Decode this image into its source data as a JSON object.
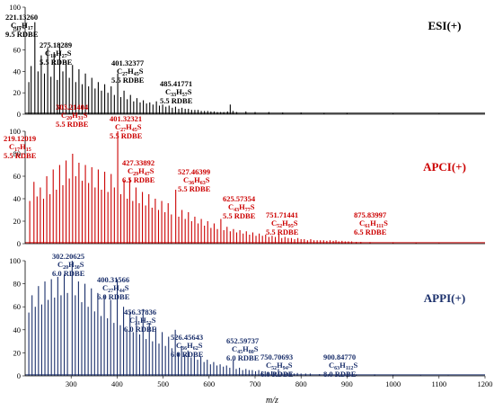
{
  "chart_data": {
    "type": "bar",
    "xlabel": "m/z",
    "xlim": [
      200,
      1200
    ],
    "x_ticks": [
      300,
      400,
      500,
      600,
      700,
      800,
      900,
      1000,
      1100,
      1200
    ],
    "ylim": [
      0,
      100
    ],
    "y_ticks": [
      0,
      20,
      40,
      60,
      80,
      100
    ],
    "legend": "none",
    "grid": false,
    "panels": [
      {
        "title": "ESI(+)",
        "color": "#000000",
        "peaks": [
          [
            208,
            30
          ],
          [
            213,
            45
          ],
          [
            221.13,
            86
          ],
          [
            228,
            40
          ],
          [
            235,
            55
          ],
          [
            242,
            38
          ],
          [
            249,
            62
          ],
          [
            256,
            35
          ],
          [
            263,
            58
          ],
          [
            270,
            32
          ],
          [
            275.18,
            66
          ],
          [
            282,
            40
          ],
          [
            289,
            50
          ],
          [
            296,
            34
          ],
          [
            303,
            46
          ],
          [
            310,
            30
          ],
          [
            317,
            42
          ],
          [
            324,
            28
          ],
          [
            331,
            38
          ],
          [
            338,
            26
          ],
          [
            345,
            34
          ],
          [
            352,
            24
          ],
          [
            359,
            30
          ],
          [
            366,
            22
          ],
          [
            373,
            28
          ],
          [
            380,
            20
          ],
          [
            387,
            26
          ],
          [
            394,
            18
          ],
          [
            401.32,
            38
          ],
          [
            408,
            16
          ],
          [
            415,
            22
          ],
          [
            422,
            14
          ],
          [
            429,
            18
          ],
          [
            436,
            12
          ],
          [
            443,
            15
          ],
          [
            450,
            11
          ],
          [
            457,
            13
          ],
          [
            464,
            10
          ],
          [
            471,
            11
          ],
          [
            478,
            9
          ],
          [
            485.42,
            12
          ],
          [
            492,
            8
          ],
          [
            499,
            9
          ],
          [
            506,
            7
          ],
          [
            513,
            8
          ],
          [
            520,
            6
          ],
          [
            527,
            7
          ],
          [
            534,
            5
          ],
          [
            541,
            6
          ],
          [
            548,
            5
          ],
          [
            555,
            5
          ],
          [
            562,
            4
          ],
          [
            569,
            4
          ],
          [
            576,
            4
          ],
          [
            583,
            3
          ],
          [
            590,
            3
          ],
          [
            597,
            3
          ],
          [
            604,
            2.5
          ],
          [
            611,
            2.5
          ],
          [
            618,
            2
          ],
          [
            625,
            2
          ],
          [
            632,
            2
          ],
          [
            640,
            2.5
          ],
          [
            646,
            9
          ],
          [
            652,
            3
          ],
          [
            660,
            2
          ],
          [
            680,
            2.5
          ],
          [
            700,
            2
          ],
          [
            730,
            2
          ],
          [
            760,
            1.5
          ],
          [
            800,
            1.5
          ],
          [
            850,
            1
          ],
          [
            900,
            1
          ],
          [
            1000,
            0.8
          ],
          [
            1100,
            0.6
          ]
        ],
        "annotations": [
          {
            "mass": "221.13260",
            "formula": "C17H17",
            "rdbe": "9.5 RDBE",
            "x": 221.13
          },
          {
            "mass": "275.18289",
            "formula": "C18H27S",
            "rdbe": "5.5 RDBE",
            "x": 275.18
          },
          {
            "mass": "401.32377",
            "formula": "C27H45S",
            "rdbe": "5.5 RDBE",
            "x": 401.32
          },
          {
            "mass": "485.41771",
            "formula": "C33H57S",
            "rdbe": "5.5 RDBE",
            "x": 485.42
          }
        ]
      },
      {
        "title": "APCI(+)",
        "color": "#cc0000",
        "peaks": [
          [
            210,
            38
          ],
          [
            219.12,
            55
          ],
          [
            226,
            42
          ],
          [
            233,
            50
          ],
          [
            240,
            40
          ],
          [
            247,
            60
          ],
          [
            254,
            44
          ],
          [
            261,
            66
          ],
          [
            268,
            48
          ],
          [
            275,
            70
          ],
          [
            282,
            52
          ],
          [
            289,
            74
          ],
          [
            296,
            58
          ],
          [
            303.21,
            80
          ],
          [
            310,
            60
          ],
          [
            317,
            72
          ],
          [
            324,
            56
          ],
          [
            331,
            70
          ],
          [
            338,
            54
          ],
          [
            345,
            68
          ],
          [
            352,
            50
          ],
          [
            359,
            66
          ],
          [
            366,
            48
          ],
          [
            373,
            64
          ],
          [
            380,
            46
          ],
          [
            387,
            62
          ],
          [
            394,
            50
          ],
          [
            401.32,
            100
          ],
          [
            408,
            44
          ],
          [
            415,
            56
          ],
          [
            422,
            40
          ],
          [
            427.34,
            58
          ],
          [
            434,
            38
          ],
          [
            441,
            50
          ],
          [
            448,
            36
          ],
          [
            455,
            46
          ],
          [
            462,
            34
          ],
          [
            469,
            44
          ],
          [
            476,
            32
          ],
          [
            483,
            40
          ],
          [
            490,
            30
          ],
          [
            497,
            38
          ],
          [
            504,
            28
          ],
          [
            511,
            36
          ],
          [
            518,
            26
          ],
          [
            527.46,
            48
          ],
          [
            534,
            24
          ],
          [
            541,
            30
          ],
          [
            548,
            22
          ],
          [
            555,
            28
          ],
          [
            562,
            20
          ],
          [
            569,
            24
          ],
          [
            576,
            18
          ],
          [
            583,
            22
          ],
          [
            590,
            16
          ],
          [
            597,
            20
          ],
          [
            604,
            14
          ],
          [
            611,
            18
          ],
          [
            618,
            13
          ],
          [
            625.57,
            22
          ],
          [
            632,
            12
          ],
          [
            639,
            15
          ],
          [
            646,
            11
          ],
          [
            653,
            13
          ],
          [
            660,
            10
          ],
          [
            667,
            12
          ],
          [
            674,
            9
          ],
          [
            681,
            11
          ],
          [
            688,
            8
          ],
          [
            695,
            10
          ],
          [
            702,
            7
          ],
          [
            709,
            9
          ],
          [
            716,
            7
          ],
          [
            723,
            8
          ],
          [
            730,
            6
          ],
          [
            737,
            7
          ],
          [
            744,
            6
          ],
          [
            751.71,
            9
          ],
          [
            758,
            5
          ],
          [
            765,
            6
          ],
          [
            772,
            5
          ],
          [
            779,
            5
          ],
          [
            786,
            4
          ],
          [
            793,
            5
          ],
          [
            800,
            4
          ],
          [
            807,
            4
          ],
          [
            814,
            3
          ],
          [
            821,
            4
          ],
          [
            828,
            3
          ],
          [
            835,
            3
          ],
          [
            842,
            3
          ],
          [
            849,
            3
          ],
          [
            856,
            2.5
          ],
          [
            863,
            3
          ],
          [
            870,
            2.5
          ],
          [
            875.84,
            3
          ],
          [
            882,
            2
          ],
          [
            889,
            2.5
          ],
          [
            896,
            2
          ],
          [
            903,
            2
          ],
          [
            910,
            2
          ],
          [
            920,
            1.5
          ],
          [
            930,
            1.5
          ],
          [
            950,
            1.2
          ],
          [
            1000,
            1
          ],
          [
            1050,
            0.8
          ],
          [
            1100,
            0.6
          ]
        ],
        "annotations": [
          {
            "mass": "219.12019",
            "formula": "C17H15",
            "rdbe": "5.5 RDBE",
            "x": 219.12
          },
          {
            "mass": "303.21404",
            "formula": "C20H31S",
            "rdbe": "5.5 RDBE",
            "x": 303.21
          },
          {
            "mass": "401.32321",
            "formula": "C27H45S",
            "rdbe": "5.5 RDBE",
            "x": 401.32
          },
          {
            "mass": "427.33892",
            "formula": "C29H47S",
            "rdbe": "6.5 RDBE",
            "x": 427.34
          },
          {
            "mass": "527.46399",
            "formula": "C36H63S",
            "rdbe": "5.5 RDBE",
            "x": 527.46
          },
          {
            "mass": "625.57354",
            "formula": "C43H77S",
            "rdbe": "5.5 RDBE",
            "x": 625.57
          },
          {
            "mass": "751.71441",
            "formula": "C52H95S",
            "rdbe": "5.5 RDBE",
            "x": 751.71
          },
          {
            "mass": "875.83997",
            "formula": "C61H111S",
            "rdbe": "6.5 RDBE",
            "x": 875.84
          }
        ]
      },
      {
        "title": "APPI(+)",
        "color": "#1a2f6b",
        "peaks": [
          [
            208,
            55
          ],
          [
            215,
            70
          ],
          [
            222,
            60
          ],
          [
            229,
            78
          ],
          [
            236,
            62
          ],
          [
            243,
            82
          ],
          [
            250,
            66
          ],
          [
            257,
            84
          ],
          [
            264,
            68
          ],
          [
            271,
            86
          ],
          [
            278,
            70
          ],
          [
            285,
            88
          ],
          [
            292,
            72
          ],
          [
            302.21,
            100
          ],
          [
            309,
            70
          ],
          [
            316,
            82
          ],
          [
            323,
            64
          ],
          [
            330,
            80
          ],
          [
            337,
            60
          ],
          [
            344,
            76
          ],
          [
            351,
            56
          ],
          [
            358,
            72
          ],
          [
            365,
            52
          ],
          [
            372,
            70
          ],
          [
            379,
            50
          ],
          [
            386,
            66
          ],
          [
            393,
            46
          ],
          [
            400.32,
            84
          ],
          [
            407,
            44
          ],
          [
            414,
            60
          ],
          [
            421,
            40
          ],
          [
            428,
            56
          ],
          [
            435,
            38
          ],
          [
            442,
            52
          ],
          [
            449,
            36
          ],
          [
            456.38,
            58
          ],
          [
            463,
            32
          ],
          [
            470,
            46
          ],
          [
            477,
            30
          ],
          [
            484,
            42
          ],
          [
            491,
            28
          ],
          [
            498,
            38
          ],
          [
            505,
            26
          ],
          [
            512,
            34
          ],
          [
            519,
            24
          ],
          [
            526.46,
            40
          ],
          [
            533,
            20
          ],
          [
            540,
            26
          ],
          [
            547,
            18
          ],
          [
            554,
            22
          ],
          [
            561,
            16
          ],
          [
            568,
            20
          ],
          [
            575,
            14
          ],
          [
            582,
            17
          ],
          [
            589,
            12
          ],
          [
            596,
            14
          ],
          [
            603,
            10
          ],
          [
            610,
            12
          ],
          [
            617,
            9
          ],
          [
            624,
            10
          ],
          [
            631,
            8
          ],
          [
            638,
            9
          ],
          [
            645,
            7
          ],
          [
            652.6,
            14
          ],
          [
            659,
            6
          ],
          [
            666,
            7
          ],
          [
            673,
            5
          ],
          [
            680,
            6
          ],
          [
            687,
            5
          ],
          [
            694,
            5
          ],
          [
            701,
            4
          ],
          [
            708,
            5
          ],
          [
            715,
            4
          ],
          [
            722,
            4
          ],
          [
            729,
            3
          ],
          [
            736,
            4
          ],
          [
            743,
            3
          ],
          [
            750.71,
            6
          ],
          [
            757,
            3
          ],
          [
            764,
            3
          ],
          [
            771,
            2.5
          ],
          [
            778,
            3
          ],
          [
            785,
            2
          ],
          [
            792,
            2.5
          ],
          [
            800,
            2
          ],
          [
            810,
            2
          ],
          [
            820,
            2
          ],
          [
            840,
            1.5
          ],
          [
            860,
            1.5
          ],
          [
            880,
            1.5
          ],
          [
            900.85,
            3
          ],
          [
            920,
            1
          ],
          [
            960,
            1
          ],
          [
            1000,
            0.8
          ],
          [
            1060,
            0.6
          ],
          [
            1120,
            0.5
          ]
        ],
        "annotations": [
          {
            "mass": "302.20625",
            "formula": "C20H30S",
            "rdbe": "6.0 RDBE",
            "x": 302.21
          },
          {
            "mass": "400.31566",
            "formula": "C27H44S",
            "rdbe": "6.0 RDBE",
            "x": 400.32
          },
          {
            "mass": "456.37836",
            "formula": "C31H52S",
            "rdbe": "6.0 RDBE",
            "x": 456.38
          },
          {
            "mass": "526.45643",
            "formula": "C36H62S",
            "rdbe": "6.0 RDBE",
            "x": 526.46
          },
          {
            "mass": "652.59737",
            "formula": "C45H80S",
            "rdbe": "6.0 RDBE",
            "x": 652.6
          },
          {
            "mass": "750.70693",
            "formula": "C52H94S",
            "rdbe": "6.0 RDBE",
            "x": 750.71
          },
          {
            "mass": "900.84770",
            "formula": "C63H112S",
            "rdbe": "8.0 RDBE",
            "x": 900.85
          }
        ]
      }
    ]
  }
}
